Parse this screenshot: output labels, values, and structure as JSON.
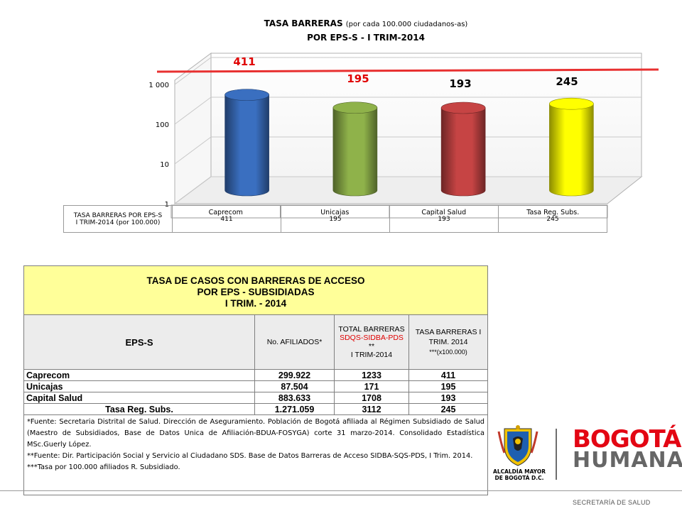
{
  "slide": {
    "title_line1_main": "TASA BARRERAS",
    "title_line1_small": "(por  cada 100.000 ciudadanos-as)",
    "title_line2": "POR EPS-S   -   I TRIM-2014"
  },
  "chart_data": {
    "type": "bar",
    "style": "3d-cylinder",
    "title": "TASA BARRERAS (por cada 100.000 ciudadanos-as) POR EPS-S - I TRIM-2014",
    "categories": [
      "Caprecom",
      "Unicajas",
      "Capital Salud",
      "Tasa Reg. Subs."
    ],
    "values": [
      411,
      195,
      193,
      245
    ],
    "y_scale": "log",
    "ylim": [
      1,
      1000
    ],
    "y_ticks": [
      "1",
      "10",
      "100",
      "1 000"
    ],
    "bar_colors": [
      "#3a6fc0",
      "#8fb24a",
      "#c64444",
      "#ffff00"
    ],
    "data_label_colors": [
      "#e00000",
      "#e00000",
      "#000000",
      "#000000"
    ],
    "reference_line_color": "#e83030",
    "data_table": {
      "row_label": "TASA BARRERAS POR EPS-S I TRIM-2014 (por 100.000)",
      "row_label_line1": "TASA BARRERAS POR EPS-S",
      "row_label_line2": "I TRIM-2014 (por 100.000)"
    }
  },
  "table": {
    "title_line1": "TASA DE CASOS CON BARRERAS DE ACCESO",
    "title_line2": "POR EPS - SUBSIDIADAS",
    "title_line3": "I TRIM. - 2014",
    "col_eps": "EPS-S",
    "col_afiliados": "No. AFILIADOS*",
    "col_barreras_1": "TOTAL BARRERAS",
    "col_barreras_2": "SDQS-SIDBA-PDS",
    "col_barreras_3": "**",
    "col_barreras_4": "I TRIM-2014",
    "col_tasa_1": "TASA BARRERAS  I TRIM. 2014",
    "col_tasa_2": "***(x100.000)",
    "rows": [
      {
        "eps": "Caprecom",
        "afiliados": "299.922",
        "barreras": "1233",
        "tasa": "411"
      },
      {
        "eps": "Unicajas",
        "afiliados": "87.504",
        "barreras": "171",
        "tasa": "195"
      },
      {
        "eps": "Capital Salud",
        "afiliados": "883.633",
        "barreras": "1708",
        "tasa": "193"
      },
      {
        "eps": "Tasa Reg. Subs.",
        "afiliados": "1.271.059",
        "barreras": "3112",
        "tasa": "245"
      }
    ],
    "footnote_1": "*Fuente: Secretaria Distrital de Salud. Dirección de Aseguramiento. Población de Bogotá afiliada al Régimen Subsidiado de Salud (Maestro de Subsidiados, Base de Datos Unica de Afiliación-BDUA-FOSYGA) corte 31 marzo-2014. Consolidado Estadística MSc.Guerly López.",
    "footnote_2": "**Fuente: Dir. Participación Social y Servicio al Ciudadano SDS. Base de Datos Barreras de Acceso SIDBA-SQS-PDS, I Trim. 2014.",
    "footnote_3": "***Tasa por 100.000 afiliados R. Subsidiado."
  },
  "branding": {
    "seal_caption_1": "ALCALDÍA MAYOR",
    "seal_caption_2": "DE BOGOTÁ D.C.",
    "brand_line1": "BOGOTÁ",
    "brand_line2": "HUMANA",
    "department": "SECRETARÍA DE SALUD"
  }
}
